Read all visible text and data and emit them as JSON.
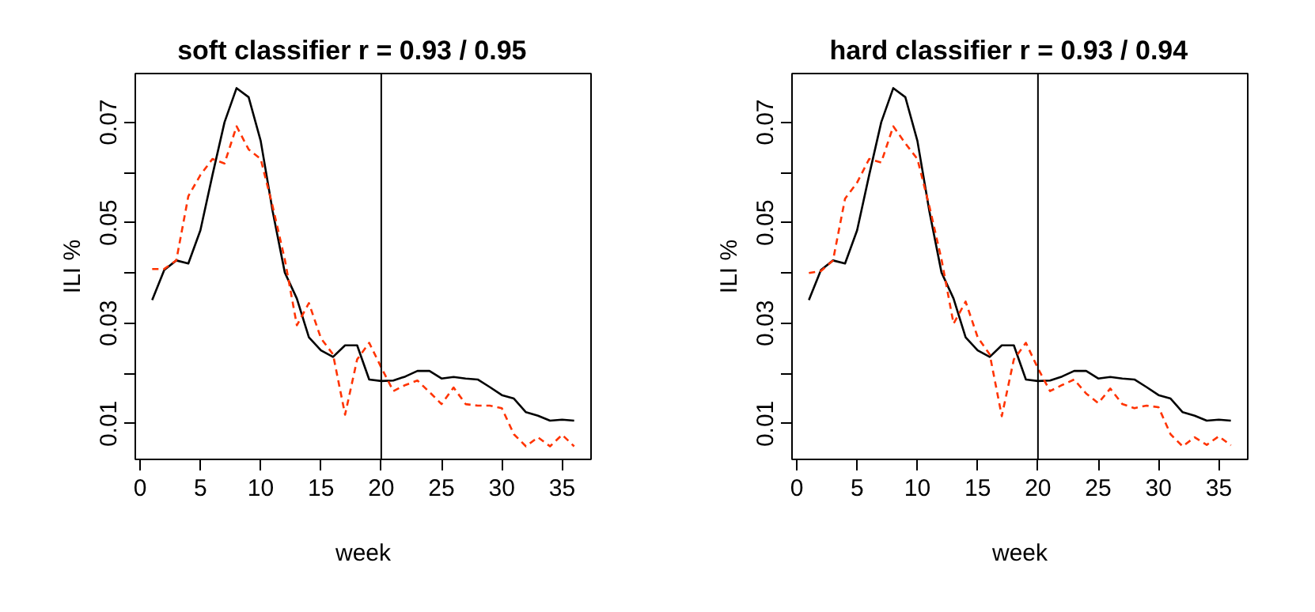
{
  "chart_data": [
    {
      "type": "line",
      "title": "soft classifier   r =  0.93 / 0.95",
      "xlabel": "week",
      "ylabel": "ILI %",
      "x": [
        1,
        2,
        3,
        4,
        5,
        6,
        7,
        8,
        9,
        10,
        11,
        12,
        13,
        14,
        15,
        16,
        17,
        18,
        19,
        20,
        21,
        22,
        23,
        24,
        25,
        26,
        27,
        28,
        29,
        30,
        31,
        32,
        33,
        34,
        35,
        36
      ],
      "series": [
        {
          "color": "#000000",
          "line_style": "solid",
          "values": [
            0.0346,
            0.0406,
            0.0425,
            0.0419,
            0.0485,
            0.0595,
            0.07,
            0.0768,
            0.075,
            0.0663,
            0.0522,
            0.0401,
            0.0349,
            0.0272,
            0.0246,
            0.0233,
            0.0256,
            0.0256,
            0.0188,
            0.0185,
            0.0186,
            0.0194,
            0.0205,
            0.0205,
            0.019,
            0.0193,
            0.019,
            0.0188,
            0.0173,
            0.0157,
            0.015,
            0.0123,
            0.0116,
            0.0106,
            0.0108,
            0.0106
          ]
        },
        {
          "color": "#ff3300",
          "line_style": "dashed",
          "values": [
            0.0408,
            0.0408,
            0.0425,
            0.0553,
            0.0595,
            0.0627,
            0.0618,
            0.0692,
            0.0646,
            0.0627,
            0.0532,
            0.0427,
            0.0296,
            0.034,
            0.027,
            0.0238,
            0.0118,
            0.0228,
            0.0261,
            0.0212,
            0.0165,
            0.0177,
            0.0186,
            0.0163,
            0.0139,
            0.0172,
            0.0139,
            0.0136,
            0.0136,
            0.0131,
            0.0079,
            0.0055,
            0.0073,
            0.0055,
            0.0078,
            0.0055
          ]
        }
      ],
      "xlim": [
        -0.4,
        37.4
      ],
      "xticks": [
        0,
        5,
        10,
        15,
        20,
        25,
        30,
        35
      ],
      "ylim": [
        0.0029,
        0.0797
      ],
      "yticks": [
        0.01,
        {
          "value": 0.02,
          "label": null
        },
        0.03,
        {
          "value": 0.04,
          "label": null
        },
        0.05,
        {
          "value": 0.06,
          "label": null
        },
        0.07
      ],
      "ref_lines": [
        {
          "axis": "x",
          "value": 20,
          "color": "#000000"
        }
      ],
      "grid": false
    },
    {
      "type": "line",
      "title": "hard classifier   r =  0.93 / 0.94",
      "xlabel": "week",
      "ylabel": "ILI %",
      "x": [
        1,
        2,
        3,
        4,
        5,
        6,
        7,
        8,
        9,
        10,
        11,
        12,
        13,
        14,
        15,
        16,
        17,
        18,
        19,
        20,
        21,
        22,
        23,
        24,
        25,
        26,
        27,
        28,
        29,
        30,
        31,
        32,
        33,
        34,
        35,
        36
      ],
      "series": [
        {
          "color": "#000000",
          "line_style": "solid",
          "values": [
            0.0346,
            0.0406,
            0.0425,
            0.0419,
            0.0485,
            0.0595,
            0.07,
            0.0768,
            0.075,
            0.0663,
            0.0522,
            0.0401,
            0.0349,
            0.0272,
            0.0246,
            0.0233,
            0.0256,
            0.0256,
            0.0188,
            0.0185,
            0.0186,
            0.0194,
            0.0205,
            0.0205,
            0.019,
            0.0193,
            0.019,
            0.0188,
            0.0173,
            0.0157,
            0.015,
            0.0123,
            0.0116,
            0.0106,
            0.0108,
            0.0106
          ]
        },
        {
          "color": "#ff3300",
          "line_style": "dashed",
          "values": [
            0.04,
            0.0404,
            0.0425,
            0.0548,
            0.058,
            0.0627,
            0.062,
            0.0692,
            0.0658,
            0.0627,
            0.0532,
            0.0427,
            0.0299,
            0.0343,
            0.0272,
            0.0238,
            0.0115,
            0.0228,
            0.0261,
            0.021,
            0.0165,
            0.0177,
            0.0188,
            0.016,
            0.0141,
            0.017,
            0.0139,
            0.0131,
            0.0136,
            0.0133,
            0.0079,
            0.0055,
            0.0073,
            0.0058,
            0.0075,
            0.0057
          ]
        }
      ],
      "xlim": [
        -0.4,
        37.4
      ],
      "xticks": [
        0,
        5,
        10,
        15,
        20,
        25,
        30,
        35
      ],
      "ylim": [
        0.0029,
        0.0797
      ],
      "yticks": [
        0.01,
        {
          "value": 0.02,
          "label": null
        },
        0.03,
        {
          "value": 0.04,
          "label": null
        },
        0.05,
        {
          "value": 0.06,
          "label": null
        },
        0.07
      ],
      "ref_lines": [
        {
          "axis": "x",
          "value": 20,
          "color": "#000000"
        }
      ],
      "grid": false
    }
  ]
}
